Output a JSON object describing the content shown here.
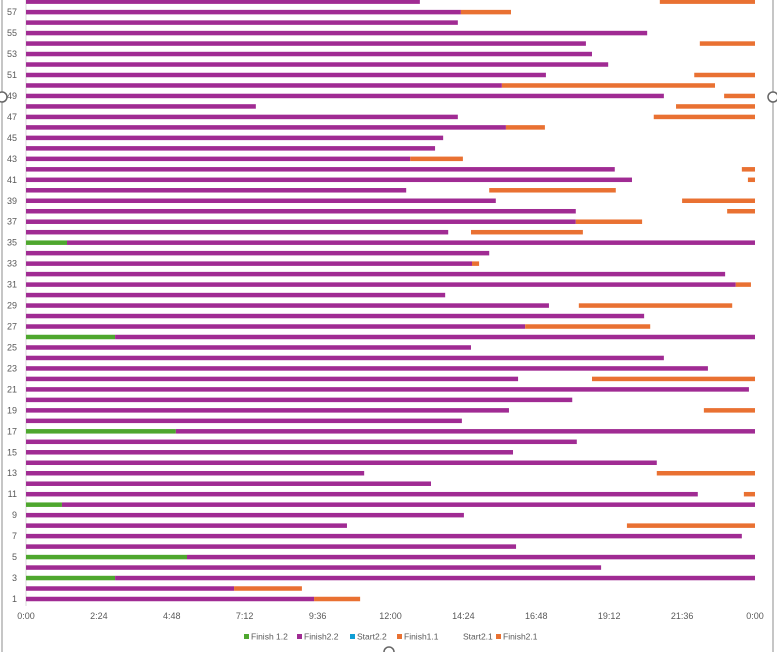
{
  "chart_data": {
    "type": "bar",
    "orientation": "horizontal",
    "stacked": true,
    "xlim": [
      "0:00",
      "24:00"
    ],
    "x_ticks": [
      "0:00",
      "2:24",
      "4:48",
      "7:12",
      "9:36",
      "12:00",
      "14:24",
      "16:48",
      "19:12",
      "21:36",
      "0:00"
    ],
    "y_ticks": [
      "1",
      "3",
      "5",
      "7",
      "9",
      "11",
      "13",
      "15",
      "17",
      "19",
      "21",
      "23",
      "25",
      "27",
      "29",
      "31",
      "33",
      "35",
      "37",
      "39",
      "41",
      "43",
      "45",
      "47",
      "49",
      "51",
      "53",
      "55",
      "57"
    ],
    "grid": false,
    "legend_position": "bottom",
    "legend": [
      {
        "name": "Finish 1.2",
        "color": "#4EA72E"
      },
      {
        "name": "Finish2.2",
        "color": "#A02B93"
      },
      {
        "name": "Start2.2",
        "color": "#0F9ED5"
      },
      {
        "name": "Finish1.1",
        "color": "#E97132"
      },
      {
        "name": "Start2.1",
        "color": "none"
      },
      {
        "name": "Finish2.1",
        "color": "#E97132"
      }
    ],
    "colors": {
      "green": "#4EA72E",
      "purple": "#A02B93",
      "orange": "#E97132"
    },
    "rows": [
      {
        "y": 1,
        "purple_end": "9:29",
        "orange": [
          "9:29",
          "11:00"
        ]
      },
      {
        "y": 2,
        "purple_end": "6:51",
        "orange": [
          "6:51",
          "9:05"
        ]
      },
      {
        "y": 3,
        "green_end": "2:56",
        "purple_end": "24:00"
      },
      {
        "y": 4,
        "purple_end": "18:56"
      },
      {
        "y": 5,
        "green_end": "5:18",
        "purple_end": "24:00"
      },
      {
        "y": 6,
        "purple_end": "16:08"
      },
      {
        "y": 7,
        "purple_end": "23:34"
      },
      {
        "y": 8,
        "purple_end": "10:34",
        "orange": [
          "19:47",
          "24:00"
        ]
      },
      {
        "y": 9,
        "purple_end": "14:25"
      },
      {
        "y": 10,
        "green_end": "1:11",
        "purple_end": "24:00"
      },
      {
        "y": 11,
        "purple_end": "22:07",
        "orange": [
          "23:38",
          "24:00"
        ]
      },
      {
        "y": 12,
        "purple_end": "13:20"
      },
      {
        "y": 13,
        "purple_end": "11:08",
        "orange": [
          "20:46",
          "24:00"
        ]
      },
      {
        "y": 14,
        "purple_end": "20:46"
      },
      {
        "y": 15,
        "purple_end": "16:02"
      },
      {
        "y": 16,
        "purple_end": "18:08"
      },
      {
        "y": 17,
        "green_end": "4:56",
        "purple_end": "24:00"
      },
      {
        "y": 18,
        "purple_end": "14:21"
      },
      {
        "y": 19,
        "purple_end": "15:54",
        "orange": [
          "22:19",
          "24:00"
        ]
      },
      {
        "y": 20,
        "purple_end": "17:59"
      },
      {
        "y": 21,
        "purple_end": "23:48"
      },
      {
        "y": 22,
        "purple_end": "16:12",
        "orange": [
          "18:38",
          "24:00"
        ]
      },
      {
        "y": 23,
        "purple_end": "22:27"
      },
      {
        "y": 24,
        "purple_end": "21:00"
      },
      {
        "y": 25,
        "purple_end": "14:39"
      },
      {
        "y": 26,
        "green_end": "2:56",
        "purple_end": "24:00"
      },
      {
        "y": 27,
        "purple_end": "16:26",
        "orange": [
          "16:26",
          "20:33"
        ]
      },
      {
        "y": 28,
        "purple_end": "20:21"
      },
      {
        "y": 29,
        "purple_end": "17:13",
        "orange": [
          "18:12",
          "23:15"
        ]
      },
      {
        "y": 30,
        "purple_end": "13:48"
      },
      {
        "y": 31,
        "purple_end": "23:22",
        "orange": [
          "23:22",
          "23:52"
        ]
      },
      {
        "y": 32,
        "purple_end": "23:01"
      },
      {
        "y": 33,
        "purple_end": "14:41",
        "orange": [
          "14:41",
          "14:55"
        ]
      },
      {
        "y": 34,
        "purple_end": "15:15"
      },
      {
        "y": 35,
        "green_end": "1:21",
        "purple_end": "24:00"
      },
      {
        "y": 36,
        "purple_end": "13:54",
        "orange": [
          "14:39",
          "18:20"
        ]
      },
      {
        "y": 37,
        "purple_end": "18:06",
        "orange": [
          "18:06",
          "20:17"
        ]
      },
      {
        "y": 38,
        "purple_end": "18:06",
        "orange": [
          "23:05",
          "24:00"
        ]
      },
      {
        "y": 39,
        "purple_end": "15:28",
        "orange": [
          "21:36",
          "24:00"
        ]
      },
      {
        "y": 40,
        "purple_end": "12:31",
        "orange": [
          "15:15",
          "19:25"
        ]
      },
      {
        "y": 41,
        "purple_end": "19:57",
        "orange": [
          "23:46",
          "24:00"
        ]
      },
      {
        "y": 42,
        "purple_end": "19:23",
        "orange": [
          "23:34",
          "24:00"
        ]
      },
      {
        "y": 43,
        "purple_end": "12:39",
        "orange": [
          "12:39",
          "14:23"
        ]
      },
      {
        "y": 44,
        "purple_end": "13:28"
      },
      {
        "y": 45,
        "purple_end": "13:44"
      },
      {
        "y": 46,
        "purple_end": "15:48",
        "orange": [
          "15:48",
          "17:05"
        ]
      },
      {
        "y": 47,
        "purple_end": "14:13",
        "orange": [
          "20:40",
          "24:00"
        ]
      },
      {
        "y": 48,
        "purple_end": "7:34",
        "orange": [
          "21:24",
          "24:00"
        ]
      },
      {
        "y": 49,
        "purple_end": "21:00",
        "orange": [
          "22:59",
          "24:00"
        ]
      },
      {
        "y": 50,
        "purple_end": "15:40",
        "orange": [
          "15:40",
          "22:41"
        ]
      },
      {
        "y": 51,
        "purple_end": "17:07",
        "orange": [
          "22:00",
          "24:00"
        ]
      },
      {
        "y": 52,
        "purple_end": "19:10"
      },
      {
        "y": 53,
        "purple_end": "18:38"
      },
      {
        "y": 54,
        "purple_end": "18:26",
        "orange": [
          "22:11",
          "24:00"
        ]
      },
      {
        "y": 55,
        "purple_end": "20:27"
      },
      {
        "y": 56,
        "purple_end": "14:13"
      },
      {
        "y": 57,
        "purple_end": "14:19",
        "orange": [
          "14:19",
          "15:58"
        ]
      },
      {
        "y": 58,
        "purple_end": "12:58",
        "orange": [
          "20:52",
          "24:00"
        ]
      }
    ]
  }
}
